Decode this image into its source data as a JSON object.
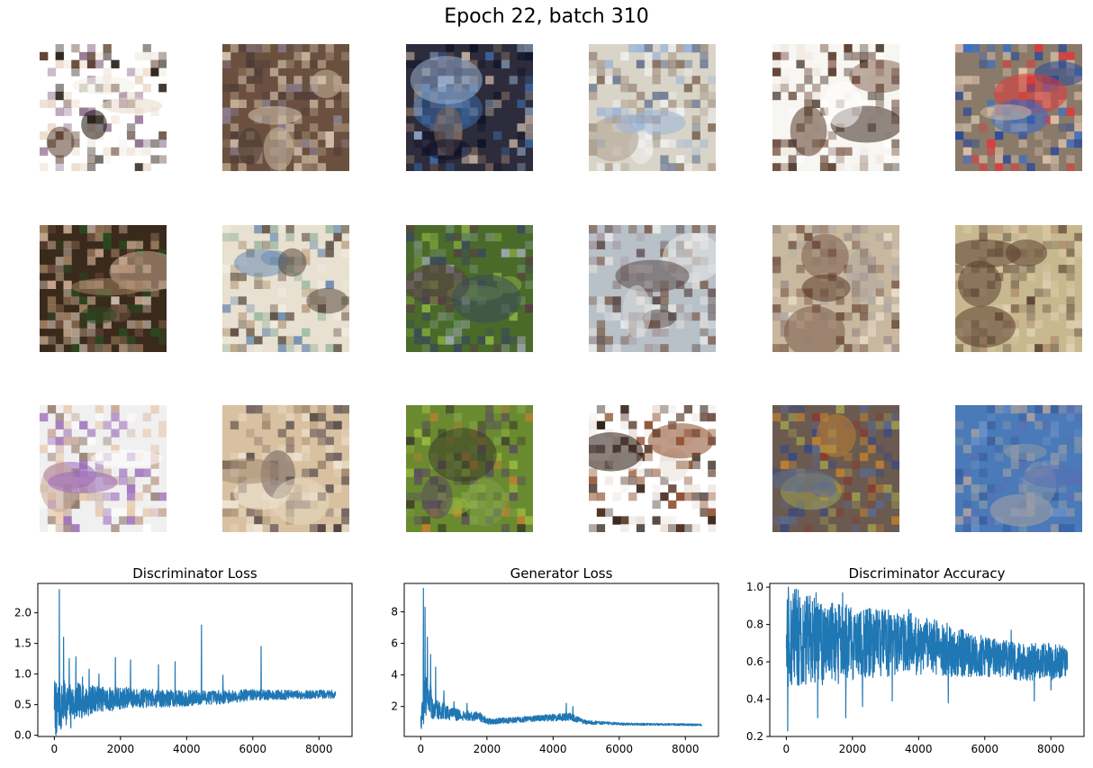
{
  "figure": {
    "title": "Epoch 22, batch 310"
  },
  "samples": [
    {
      "palette": [
        "#ffffff",
        "#1a0f08",
        "#f3eee6",
        "#5a3a2a",
        "#8a6a8a",
        "#e9d8c8"
      ]
    },
    {
      "palette": [
        "#6b5040",
        "#a08870",
        "#c9b59a",
        "#4a3a35",
        "#8c8090",
        "#d8c8b0"
      ]
    },
    {
      "palette": [
        "#2c2c3c",
        "#3d6aa8",
        "#7a6458",
        "#c0b0a0",
        "#101028",
        "#9ab0d0"
      ]
    },
    {
      "palette": [
        "#d8d4c8",
        "#9ab4d8",
        "#806a58",
        "#f0f0f0",
        "#5a6a8a",
        "#b0a090"
      ]
    },
    {
      "palette": [
        "#f8f6f2",
        "#5a3a2a",
        "#3a2a20",
        "#efe8e0",
        "#8a6a5a",
        "#ffffff"
      ]
    },
    {
      "palette": [
        "#8a7a6a",
        "#2a4a98",
        "#c8b8a0",
        "#e03838",
        "#3a70c8",
        "#e8c8b0"
      ]
    },
    {
      "palette": [
        "#3a2a1c",
        "#a08060",
        "#c8a890",
        "#705040",
        "#d0c0b0",
        "#2a4a20"
      ]
    },
    {
      "palette": [
        "#e8e0d0",
        "#5a4a40",
        "#9ab8a0",
        "#f0ece0",
        "#6a8ab0",
        "#b8a080"
      ]
    },
    {
      "palette": [
        "#4a6a2a",
        "#3a4a5a",
        "#6a8a60",
        "#8ab040",
        "#5a3a48",
        "#a0a8b0"
      ]
    },
    {
      "palette": [
        "#b8c0c8",
        "#7a5a48",
        "#d8d8d8",
        "#5a4a48",
        "#a898a0",
        "#e8e8e8"
      ]
    },
    {
      "palette": [
        "#c8b8a0",
        "#5a3a28",
        "#a09088",
        "#e8dcc8",
        "#7a5a48",
        "#b0a8a0"
      ]
    },
    {
      "palette": [
        "#c8b890",
        "#8a7a60",
        "#e0d0b0",
        "#5a4030",
        "#b09070",
        "#d8c8a0"
      ]
    },
    {
      "palette": [
        "#f0f0f0",
        "#8a7060",
        "#9a68b8",
        "#e8c8a8",
        "#c8a898",
        "#ffffff"
      ]
    },
    {
      "palette": [
        "#d8c0a0",
        "#4a4040",
        "#f0e8d8",
        "#a08870",
        "#706060",
        "#e8d8c0"
      ]
    },
    {
      "palette": [
        "#6a8a30",
        "#9ab840",
        "#3a3a2a",
        "#c08030",
        "#5a4a60",
        "#80a048"
      ]
    },
    {
      "palette": [
        "#ffffff",
        "#4a2818",
        "#8a4a28",
        "#f0ece8",
        "#2a1810",
        "#e8e0d8"
      ]
    },
    {
      "palette": [
        "#6a5a50",
        "#c08030",
        "#3a4a80",
        "#8a3a30",
        "#a0a050",
        "#5a6a90"
      ]
    },
    {
      "palette": [
        "#4a7ab8",
        "#6a90c8",
        "#8a98a8",
        "#3a60a0",
        "#5a70b0",
        "#a8a0a0"
      ]
    }
  ],
  "chart_data": [
    {
      "type": "line",
      "title": "Discriminator Loss",
      "xlim": [
        -500,
        9000
      ],
      "ylim": [
        -0.02,
        2.48
      ],
      "xticks": [
        0,
        2000,
        4000,
        6000,
        8000
      ],
      "xtick_labels": [
        "0",
        "2000",
        "4000",
        "6000",
        "8000"
      ],
      "yticks": [
        0.0,
        0.5,
        1.0,
        1.5,
        2.0
      ],
      "ytick_labels": [
        "0.0",
        "0.5",
        "1.0",
        "1.5",
        "2.0"
      ],
      "color": "#1f77b4",
      "series": [
        {
          "x_range": [
            0,
            8500
          ],
          "x": [
            0,
            60,
            120,
            200,
            300,
            400,
            500,
            600,
            700,
            800,
            900,
            1000,
            1200,
            1400,
            1600,
            1800,
            2000,
            2200,
            2500,
            3000,
            3500,
            4000,
            4500,
            5000,
            5500,
            6000,
            6500,
            7000,
            7500,
            8000,
            8500
          ],
          "y": [
            0.6,
            0.35,
            0.5,
            0.45,
            0.55,
            0.5,
            0.55,
            0.5,
            0.58,
            0.55,
            0.55,
            0.55,
            0.6,
            0.6,
            0.58,
            0.6,
            0.6,
            0.62,
            0.6,
            0.6,
            0.6,
            0.6,
            0.62,
            0.62,
            0.64,
            0.66,
            0.66,
            0.66,
            0.66,
            0.67,
            0.67
          ],
          "noise": [
            0.35,
            0.5,
            0.4,
            0.4,
            0.35,
            0.35,
            0.3,
            0.3,
            0.28,
            0.28,
            0.25,
            0.25,
            0.22,
            0.2,
            0.2,
            0.2,
            0.18,
            0.17,
            0.16,
            0.15,
            0.14,
            0.13,
            0.12,
            0.11,
            0.1,
            0.09,
            0.08,
            0.08,
            0.07,
            0.07,
            0.07
          ],
          "spikes": [
            [
              150,
              2.38
            ],
            [
              280,
              1.6
            ],
            [
              450,
              1.25
            ],
            [
              650,
              1.28
            ],
            [
              850,
              0.95
            ],
            [
              1050,
              1.08
            ],
            [
              1350,
              1.0
            ],
            [
              1850,
              1.27
            ],
            [
              2300,
              1.23
            ],
            [
              3150,
              1.15
            ],
            [
              3650,
              1.2
            ],
            [
              4450,
              1.8
            ],
            [
              5100,
              0.98
            ],
            [
              6250,
              1.45
            ]
          ],
          "dips": [
            [
              70,
              0.05
            ],
            [
              200,
              0.1
            ],
            [
              500,
              0.12
            ]
          ]
        }
      ]
    },
    {
      "type": "line",
      "title": "Generator Loss",
      "xlim": [
        -500,
        9000
      ],
      "ylim": [
        0.1,
        9.8
      ],
      "xticks": [
        0,
        2000,
        4000,
        6000,
        8000
      ],
      "xtick_labels": [
        "0",
        "2000",
        "4000",
        "6000",
        "8000"
      ],
      "yticks": [
        2,
        4,
        6,
        8
      ],
      "ytick_labels": [
        "2",
        "4",
        "6",
        "8"
      ],
      "color": "#1f77b4",
      "series": [
        {
          "x_range": [
            0,
            8500
          ],
          "x": [
            0,
            100,
            200,
            300,
            400,
            500,
            600,
            700,
            800,
            1000,
            1200,
            1500,
            1800,
            2000,
            2500,
            3000,
            3500,
            4000,
            4500,
            5000,
            5500,
            6000,
            6500,
            7000,
            7500,
            8000,
            8500
          ],
          "y": [
            1.0,
            2.4,
            2.6,
            2.3,
            2.0,
            1.9,
            1.8,
            1.7,
            1.6,
            1.5,
            1.45,
            1.4,
            1.35,
            1.05,
            1.1,
            1.15,
            1.25,
            1.3,
            1.35,
            1.0,
            0.95,
            0.9,
            0.88,
            0.87,
            0.86,
            0.85,
            0.84
          ],
          "noise": [
            0.6,
            1.5,
            1.2,
            1.0,
            0.8,
            0.7,
            0.6,
            0.5,
            0.45,
            0.4,
            0.35,
            0.3,
            0.3,
            0.2,
            0.18,
            0.18,
            0.2,
            0.22,
            0.25,
            0.12,
            0.1,
            0.08,
            0.07,
            0.07,
            0.06,
            0.06,
            0.06
          ],
          "spikes": [
            [
              80,
              9.5
            ],
            [
              130,
              8.3
            ],
            [
              200,
              6.4
            ],
            [
              300,
              5.3
            ],
            [
              450,
              4.5
            ],
            [
              700,
              3.0
            ],
            [
              1000,
              2.3
            ],
            [
              1400,
              2.2
            ],
            [
              4400,
              2.2
            ],
            [
              4600,
              2.0
            ]
          ],
          "dips": [
            [
              20,
              0.6
            ]
          ]
        }
      ]
    },
    {
      "type": "line",
      "title": "Discriminator Accuracy",
      "xlim": [
        -500,
        9000
      ],
      "ylim": [
        0.2,
        1.02
      ],
      "xticks": [
        0,
        2000,
        4000,
        6000,
        8000
      ],
      "xtick_labels": [
        "0",
        "2000",
        "4000",
        "6000",
        "8000"
      ],
      "yticks": [
        0.2,
        0.4,
        0.6,
        0.8,
        1.0
      ],
      "ytick_labels": [
        "0.2",
        "0.4",
        "0.6",
        "0.8",
        "1.0"
      ],
      "color": "#1f77b4",
      "series": [
        {
          "x_range": [
            0,
            8500
          ],
          "x": [
            0,
            200,
            500,
            1000,
            1500,
            2000,
            2500,
            3000,
            3500,
            4000,
            4500,
            5000,
            5500,
            6000,
            6500,
            7000,
            7500,
            8000,
            8500
          ],
          "y": [
            0.72,
            0.74,
            0.72,
            0.7,
            0.7,
            0.7,
            0.7,
            0.7,
            0.7,
            0.69,
            0.68,
            0.66,
            0.64,
            0.63,
            0.62,
            0.6,
            0.6,
            0.6,
            0.6
          ],
          "noise": [
            0.28,
            0.26,
            0.25,
            0.23,
            0.22,
            0.2,
            0.19,
            0.18,
            0.17,
            0.16,
            0.15,
            0.14,
            0.12,
            0.11,
            0.1,
            0.1,
            0.1,
            0.1,
            0.09
          ],
          "spikes": [
            [
              60,
              1.0
            ],
            [
              300,
              0.99
            ],
            [
              900,
              0.97
            ],
            [
              1700,
              0.97
            ],
            [
              3700,
              0.88
            ],
            [
              6800,
              0.77
            ]
          ],
          "dips": [
            [
              40,
              0.23
            ],
            [
              950,
              0.3
            ],
            [
              1800,
              0.3
            ],
            [
              2300,
              0.36
            ],
            [
              3200,
              0.39
            ],
            [
              4900,
              0.38
            ],
            [
              7500,
              0.39
            ],
            [
              8000,
              0.45
            ]
          ]
        }
      ]
    }
  ]
}
